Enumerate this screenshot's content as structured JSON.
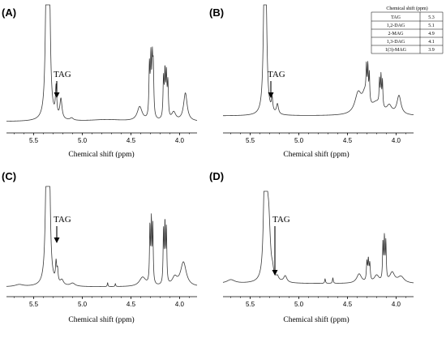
{
  "chart_data": [
    {
      "type": "line",
      "panel": "(A)",
      "xlabel": "Chemical shift (ppm)",
      "xlim": [
        5.78,
        3.82
      ],
      "x_ticks": [
        "5.5",
        "5.0",
        "4.5",
        "4.0"
      ],
      "x_tick_values": [
        5.5,
        5.0,
        4.5,
        4.0
      ],
      "annotation": "TAG",
      "annotation_x": 5.27,
      "ylim": [
        0,
        100
      ],
      "peaks": [
        {
          "x": 5.34,
          "h": 100,
          "w": 0.012
        },
        {
          "x": 5.355,
          "h": 100,
          "w": 0.012
        },
        {
          "x": 5.37,
          "h": 94,
          "w": 0.012
        },
        {
          "x": 5.27,
          "h": 25,
          "w": 0.008
        },
        {
          "x": 5.22,
          "h": 17,
          "w": 0.013
        },
        {
          "x": 5.11,
          "h": 2,
          "w": 0.02
        },
        {
          "x": 4.41,
          "h": 12,
          "w": 0.03
        },
        {
          "x": 4.31,
          "h": 43,
          "w": 0.006
        },
        {
          "x": 4.295,
          "h": 48,
          "w": 0.006
        },
        {
          "x": 4.28,
          "h": 44,
          "w": 0.006
        },
        {
          "x": 4.27,
          "h": 39,
          "w": 0.006
        },
        {
          "x": 4.165,
          "h": 33,
          "w": 0.006
        },
        {
          "x": 4.15,
          "h": 37,
          "w": 0.006
        },
        {
          "x": 4.135,
          "h": 35,
          "w": 0.006
        },
        {
          "x": 4.12,
          "h": 29,
          "w": 0.006
        },
        {
          "x": 4.06,
          "h": 7,
          "w": 0.025
        },
        {
          "x": 3.94,
          "h": 24,
          "w": 0.022
        },
        {
          "x": 4.75,
          "h": 1.5,
          "w": 0.2
        }
      ]
    },
    {
      "type": "line",
      "panel": "(B)",
      "xlabel": "Chemical shift (ppm)",
      "xlim": [
        5.78,
        3.82
      ],
      "x_ticks": [
        "5.5",
        "5.0",
        "4.5",
        "4.0"
      ],
      "x_tick_values": [
        5.5,
        5.0,
        4.5,
        4.0
      ],
      "annotation": "TAG",
      "annotation_x": 5.27,
      "ylim": [
        0,
        100
      ],
      "peaks": [
        {
          "x": 5.34,
          "h": 100,
          "w": 0.013
        },
        {
          "x": 5.355,
          "h": 98,
          "w": 0.012
        },
        {
          "x": 5.275,
          "h": 12,
          "w": 0.008
        },
        {
          "x": 5.22,
          "h": 9,
          "w": 0.012
        },
        {
          "x": 4.39,
          "h": 18,
          "w": 0.04
        },
        {
          "x": 4.32,
          "h": 16,
          "w": 0.035
        },
        {
          "x": 4.305,
          "h": 26,
          "w": 0.005
        },
        {
          "x": 4.29,
          "h": 29,
          "w": 0.005
        },
        {
          "x": 4.275,
          "h": 25,
          "w": 0.005
        },
        {
          "x": 4.17,
          "h": 22,
          "w": 0.005
        },
        {
          "x": 4.155,
          "h": 26,
          "w": 0.005
        },
        {
          "x": 4.14,
          "h": 23,
          "w": 0.005
        },
        {
          "x": 4.2,
          "h": 10,
          "w": 0.06
        },
        {
          "x": 4.07,
          "h": 7,
          "w": 0.03
        },
        {
          "x": 3.97,
          "h": 17,
          "w": 0.025
        }
      ]
    },
    {
      "type": "line",
      "panel": "(C)",
      "xlabel": "Chemical shift (ppm)",
      "xlim": [
        5.78,
        3.82
      ],
      "x_ticks": [
        "5.5",
        "5.0",
        "4.5",
        "4.0"
      ],
      "x_tick_values": [
        5.5,
        5.0,
        4.5,
        4.0
      ],
      "annotation": "TAG",
      "annotation_x": 5.27,
      "ylim": [
        0,
        100
      ],
      "peaks": [
        {
          "x": 5.34,
          "h": 100,
          "w": 0.012
        },
        {
          "x": 5.355,
          "h": 100,
          "w": 0.012
        },
        {
          "x": 5.37,
          "h": 85,
          "w": 0.013
        },
        {
          "x": 5.27,
          "h": 19,
          "w": 0.007
        },
        {
          "x": 5.255,
          "h": 12,
          "w": 0.007
        },
        {
          "x": 5.21,
          "h": 5,
          "w": 0.02
        },
        {
          "x": 5.1,
          "h": 3,
          "w": 0.03
        },
        {
          "x": 4.74,
          "h": 4,
          "w": 0.004
        },
        {
          "x": 4.66,
          "h": 3,
          "w": 0.004
        },
        {
          "x": 4.38,
          "h": 9,
          "w": 0.04
        },
        {
          "x": 4.305,
          "h": 55,
          "w": 0.005
        },
        {
          "x": 4.29,
          "h": 60,
          "w": 0.005
        },
        {
          "x": 4.275,
          "h": 56,
          "w": 0.005
        },
        {
          "x": 4.165,
          "h": 52,
          "w": 0.005
        },
        {
          "x": 4.15,
          "h": 57,
          "w": 0.005
        },
        {
          "x": 4.135,
          "h": 53,
          "w": 0.005
        },
        {
          "x": 4.05,
          "h": 8,
          "w": 0.03
        },
        {
          "x": 3.96,
          "h": 24,
          "w": 0.035
        },
        {
          "x": 5.65,
          "h": 2,
          "w": 0.05
        }
      ]
    },
    {
      "type": "line",
      "panel": "(D)",
      "xlabel": "Chemical shift (ppm)",
      "xlim": [
        5.78,
        3.82
      ],
      "x_ticks": [
        "5.5",
        "5.0",
        "4.5",
        "4.0"
      ],
      "x_tick_values": [
        5.5,
        5.0,
        4.5,
        4.0
      ],
      "annotation": "TAG",
      "annotation_x": 5.27,
      "ylim": [
        0,
        100
      ],
      "peaks": [
        {
          "x": 5.335,
          "h": 90,
          "w": 0.014
        },
        {
          "x": 5.355,
          "h": 80,
          "w": 0.013
        },
        {
          "x": 5.31,
          "h": 60,
          "w": 0.02
        },
        {
          "x": 5.27,
          "h": 6,
          "w": 0.01
        },
        {
          "x": 5.22,
          "h": 4,
          "w": 0.015
        },
        {
          "x": 5.14,
          "h": 7,
          "w": 0.02
        },
        {
          "x": 4.73,
          "h": 5,
          "w": 0.005
        },
        {
          "x": 4.65,
          "h": 6,
          "w": 0.005
        },
        {
          "x": 4.38,
          "h": 10,
          "w": 0.03
        },
        {
          "x": 4.3,
          "h": 20,
          "w": 0.006
        },
        {
          "x": 4.285,
          "h": 22,
          "w": 0.006
        },
        {
          "x": 4.27,
          "h": 18,
          "w": 0.006
        },
        {
          "x": 4.2,
          "h": 8,
          "w": 0.03
        },
        {
          "x": 4.135,
          "h": 40,
          "w": 0.005
        },
        {
          "x": 4.12,
          "h": 44,
          "w": 0.005
        },
        {
          "x": 4.105,
          "h": 40,
          "w": 0.005
        },
        {
          "x": 4.04,
          "h": 11,
          "w": 0.03
        },
        {
          "x": 3.95,
          "h": 7,
          "w": 0.04
        },
        {
          "x": 5.7,
          "h": 4,
          "w": 0.05
        }
      ]
    }
  ],
  "table": {
    "header": "Chemical shift (ppm)",
    "rows": [
      {
        "label": "TAG",
        "value": "5.3"
      },
      {
        "label": "1,2-DAG",
        "value": "5.1"
      },
      {
        "label": "2-MAG",
        "value": "4.9"
      },
      {
        "label": "1,3-DAG",
        "value": "4.1"
      },
      {
        "label": "1(3)-MAG",
        "value": "3.9"
      }
    ]
  },
  "colors": {
    "trace": "#3a3a3a",
    "text": "#000000",
    "background": "#ffffff"
  }
}
